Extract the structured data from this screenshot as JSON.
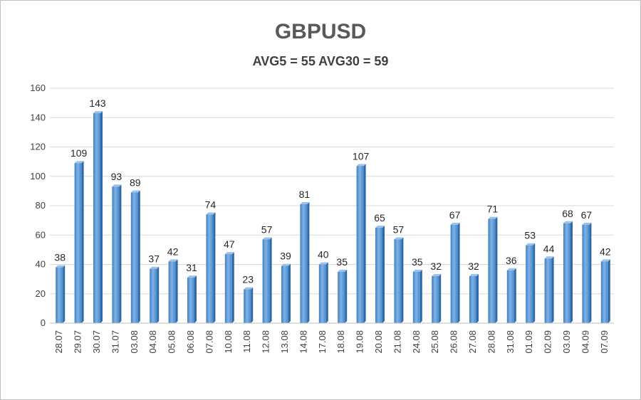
{
  "chart_data": {
    "type": "bar",
    "title": "GBPUSD",
    "subtitle": "AVG5 = 55 AVG30 = 59",
    "xlabel": "",
    "ylabel": "",
    "ylim": [
      0,
      160
    ],
    "yticks": [
      0,
      20,
      40,
      60,
      80,
      100,
      120,
      140,
      160
    ],
    "grid": true,
    "legend": "none",
    "bar_color": "#5b9bd5",
    "categories": [
      "28.07",
      "29.07",
      "30.07",
      "31.07",
      "03.08",
      "04.08",
      "05.08",
      "06.08",
      "07.08",
      "10.08",
      "11.08",
      "12.08",
      "13.08",
      "14.08",
      "17.08",
      "18.08",
      "19.08",
      "20.08",
      "21.08",
      "24.08",
      "25.08",
      "26.08",
      "27.08",
      "28.08",
      "31.08",
      "01.09",
      "02.09",
      "03.09",
      "04.09",
      "07.09"
    ],
    "values": [
      38,
      109,
      143,
      93,
      89,
      37,
      42,
      31,
      74,
      47,
      23,
      57,
      39,
      81,
      40,
      35,
      107,
      65,
      57,
      35,
      32,
      67,
      32,
      71,
      36,
      53,
      44,
      68,
      67,
      42
    ]
  }
}
